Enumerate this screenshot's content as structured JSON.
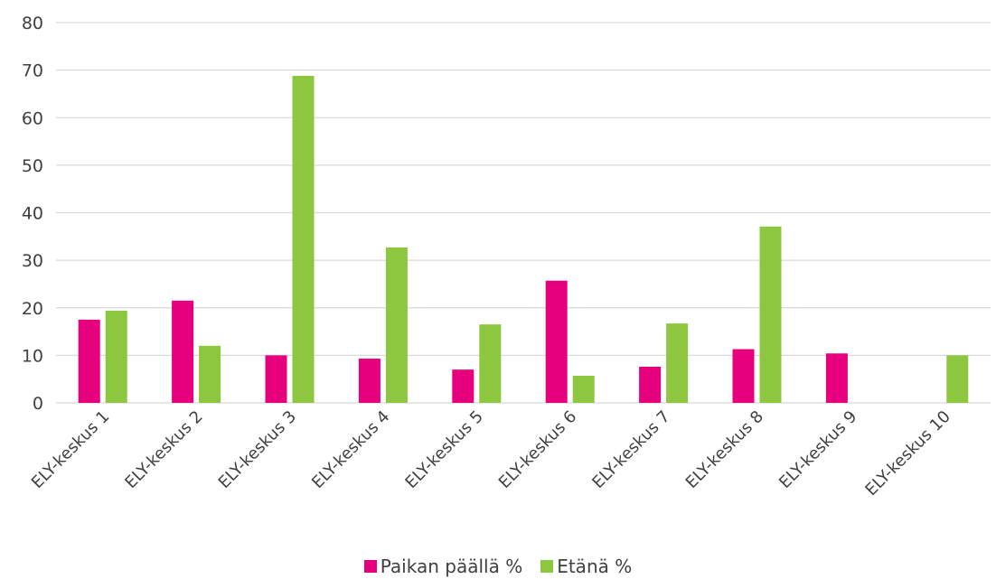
{
  "chart_data": {
    "type": "bar",
    "categories": [
      "ELY-keskus 1",
      "ELY-keskus 2",
      "ELY-keskus 3",
      "ELY-keskus 4",
      "ELY-keskus 5",
      "ELY-keskus 6",
      "ELY-keskus 7",
      "ELY-keskus 8",
      "ELY-keskus 9",
      "ELY-keskus 10"
    ],
    "series": [
      {
        "name": "Paikan päällä %",
        "color": "#e6007e",
        "values": [
          17.5,
          21.5,
          10.0,
          9.3,
          7.0,
          25.7,
          7.6,
          11.3,
          10.4,
          0
        ]
      },
      {
        "name": "Etänä %",
        "color": "#8dc63f",
        "values": [
          19.4,
          12.0,
          68.8,
          32.7,
          16.5,
          5.7,
          16.7,
          37.1,
          0,
          10.0
        ]
      }
    ],
    "yticks": [
      "0",
      "10",
      "20",
      "30",
      "40",
      "50",
      "60",
      "70",
      "80"
    ],
    "ylim": [
      0,
      80
    ],
    "grid": true,
    "legend_position": "bottom"
  }
}
